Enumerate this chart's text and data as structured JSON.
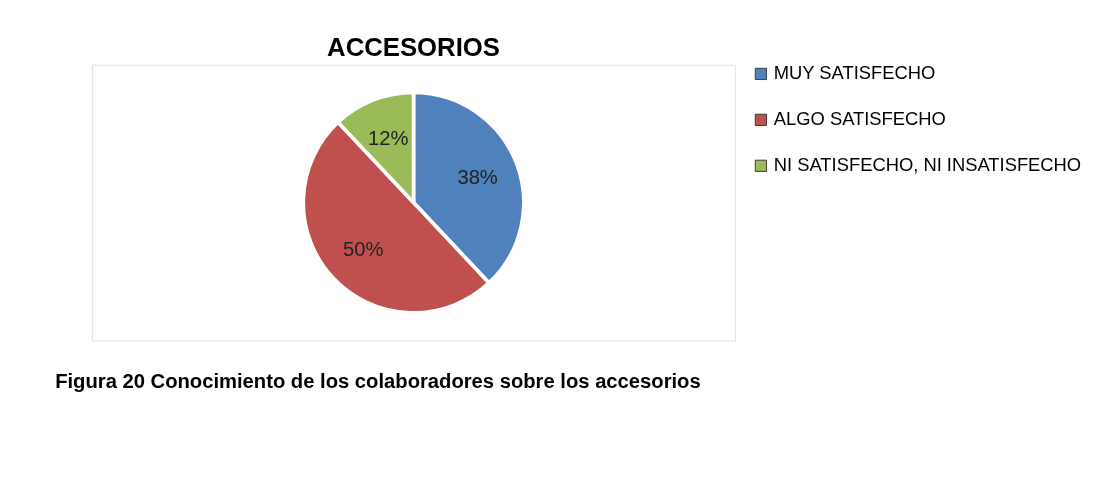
{
  "chart_data": {
    "type": "pie",
    "title": "ACCESORIOS",
    "categories": [
      "MUY SATISFECHO",
      "ALGO SATISFECHO",
      "NI SATISFECHO, NI INSATISFECHO"
    ],
    "values": [
      38,
      50,
      12
    ],
    "colors": [
      "#4f81bd",
      "#c0504d",
      "#9bbb59"
    ],
    "value_labels": [
      "38%",
      "50%",
      "12%"
    ],
    "legend": "right",
    "annotations": [
      "Figura 20 Conocimiento de los colaboradores sobre los accesorios"
    ]
  }
}
